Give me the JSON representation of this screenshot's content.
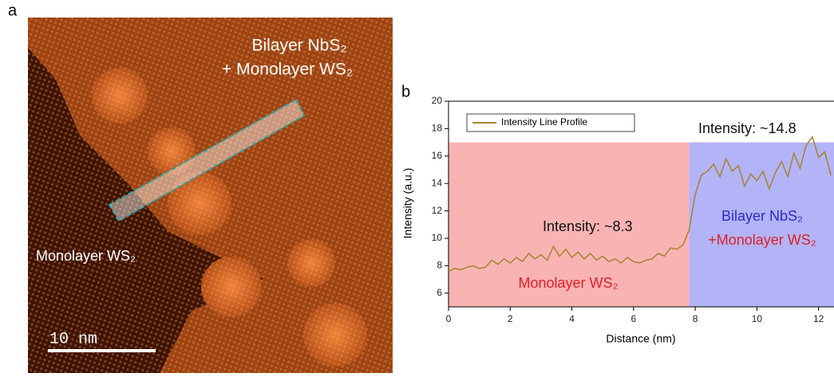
{
  "panel_a": {
    "label": "a",
    "region_top": "Bilayer NbS₂",
    "region_top2": "+ Monolayer WS₂",
    "region_left": "Monolayer WS₂",
    "scale_bar": "10 nm"
  },
  "chart_data": {
    "type": "line",
    "panel_label": "b",
    "x_label": "Distance (nm)",
    "y_label": "Intensity (a.u.)",
    "xlim": [
      0,
      12.5
    ],
    "ylim": [
      5,
      20
    ],
    "xticks": [
      0,
      2,
      4,
      6,
      8,
      10,
      12
    ],
    "yticks": [
      6,
      8,
      10,
      12,
      14,
      16,
      18,
      20
    ],
    "bands": [
      {
        "xlim": [
          0,
          7.8
        ],
        "ylim": [
          5,
          17
        ],
        "color": "#f9b3b3"
      },
      {
        "xlim": [
          7.8,
          12.5
        ],
        "ylim": [
          5,
          17
        ],
        "color": "#b3b3f7"
      }
    ],
    "annotations": [
      {
        "text": "Intensity: ~8.3",
        "color": "#111111"
      },
      {
        "text": "Intensity: ~14.8",
        "color": "#111111"
      },
      {
        "text": "Monolayer WS₂",
        "color": "#e0202a"
      },
      {
        "text": "Bilayer NbS₂",
        "color": "#2a2ad0"
      },
      {
        "text": "+Monolayer WS₂",
        "color": "#e0202a"
      }
    ],
    "legend": "upper left",
    "x": [
      0,
      0.2,
      0.4,
      0.6,
      0.8,
      1.0,
      1.2,
      1.4,
      1.6,
      1.8,
      2.0,
      2.2,
      2.4,
      2.6,
      2.8,
      3.0,
      3.2,
      3.4,
      3.6,
      3.8,
      4.0,
      4.2,
      4.4,
      4.6,
      4.8,
      5.0,
      5.2,
      5.4,
      5.6,
      5.8,
      6.0,
      6.2,
      6.4,
      6.6,
      6.8,
      7.0,
      7.2,
      7.4,
      7.6,
      7.8,
      8.0,
      8.2,
      8.4,
      8.6,
      8.8,
      9.0,
      9.2,
      9.4,
      9.6,
      9.8,
      10.0,
      10.2,
      10.4,
      10.6,
      10.8,
      11.0,
      11.2,
      11.4,
      11.6,
      11.8,
      12.0,
      12.2,
      12.4
    ],
    "series": [
      {
        "name": "Intensity Line Profile",
        "color": "#a3852f",
        "values": [
          7.6,
          7.8,
          7.7,
          7.9,
          8.0,
          7.8,
          7.9,
          8.4,
          8.1,
          8.5,
          8.2,
          8.6,
          8.3,
          8.9,
          8.5,
          8.8,
          8.4,
          9.4,
          8.7,
          9.2,
          8.6,
          9.0,
          8.5,
          8.9,
          8.4,
          8.7,
          8.3,
          8.5,
          8.2,
          8.6,
          8.3,
          8.2,
          8.4,
          8.5,
          8.9,
          8.7,
          9.3,
          9.2,
          9.5,
          10.6,
          13.2,
          14.6,
          14.9,
          15.4,
          14.5,
          15.8,
          14.9,
          15.3,
          13.8,
          14.7,
          14.2,
          14.9,
          13.6,
          14.8,
          15.6,
          14.5,
          16.2,
          15.1,
          16.8,
          17.4,
          15.9,
          16.3,
          14.6
        ]
      }
    ]
  }
}
